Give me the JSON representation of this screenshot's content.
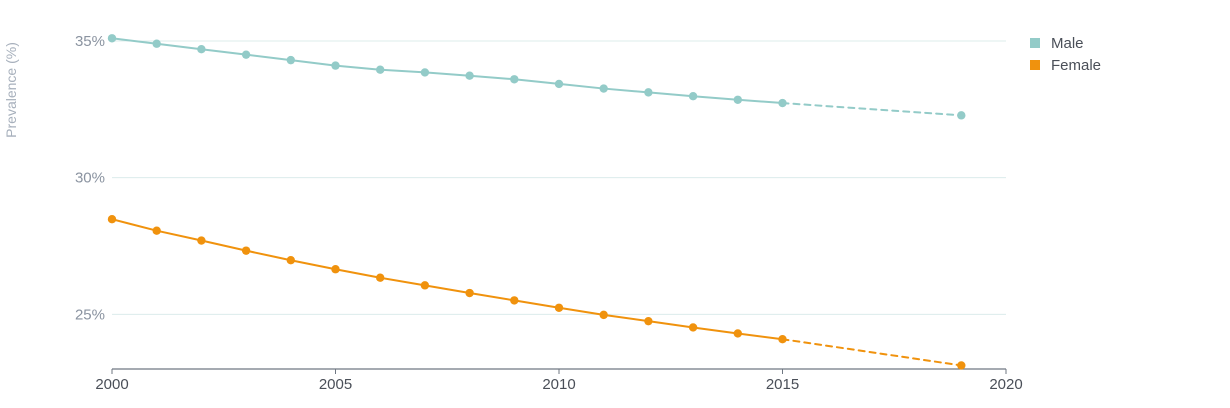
{
  "chart_data": {
    "type": "line",
    "title": "",
    "xlabel": "",
    "ylabel": "Prevalence (%)",
    "xlim": [
      2000,
      2020
    ],
    "ylim": [
      23,
      36.5
    ],
    "x_ticks": [
      2000,
      2005,
      2010,
      2015,
      2020
    ],
    "x_tick_labels": [
      "2000",
      "2005",
      "2010",
      "2015",
      "2020"
    ],
    "y_ticks": [
      25,
      30,
      35
    ],
    "y_tick_labels": [
      "25%",
      "30%",
      "35%"
    ],
    "grid": true,
    "legend": "top-right",
    "series": [
      {
        "name": "Male",
        "color": "#93cbc8",
        "x": [
          2000,
          2001,
          2002,
          2003,
          2004,
          2005,
          2006,
          2007,
          2008,
          2009,
          2010,
          2011,
          2012,
          2013,
          2014,
          2015
        ],
        "values": [
          35.1,
          34.9,
          34.7,
          34.5,
          34.3,
          34.1,
          33.95,
          33.85,
          33.73,
          33.6,
          33.43,
          33.26,
          33.12,
          32.98,
          32.85,
          32.73
        ],
        "projection": {
          "x": [
            2015,
            2019
          ],
          "values": [
            32.73,
            32.28
          ]
        }
      },
      {
        "name": "Female",
        "color": "#f0920d",
        "x": [
          2000,
          2001,
          2002,
          2003,
          2004,
          2005,
          2006,
          2007,
          2008,
          2009,
          2010,
          2011,
          2012,
          2013,
          2014,
          2015
        ],
        "values": [
          28.48,
          28.06,
          27.7,
          27.33,
          26.98,
          26.65,
          26.34,
          26.06,
          25.78,
          25.51,
          25.24,
          24.98,
          24.75,
          24.52,
          24.3,
          24.09
        ],
        "projection": {
          "x": [
            2015,
            2019
          ],
          "values": [
            24.09,
            23.13
          ]
        }
      }
    ]
  }
}
